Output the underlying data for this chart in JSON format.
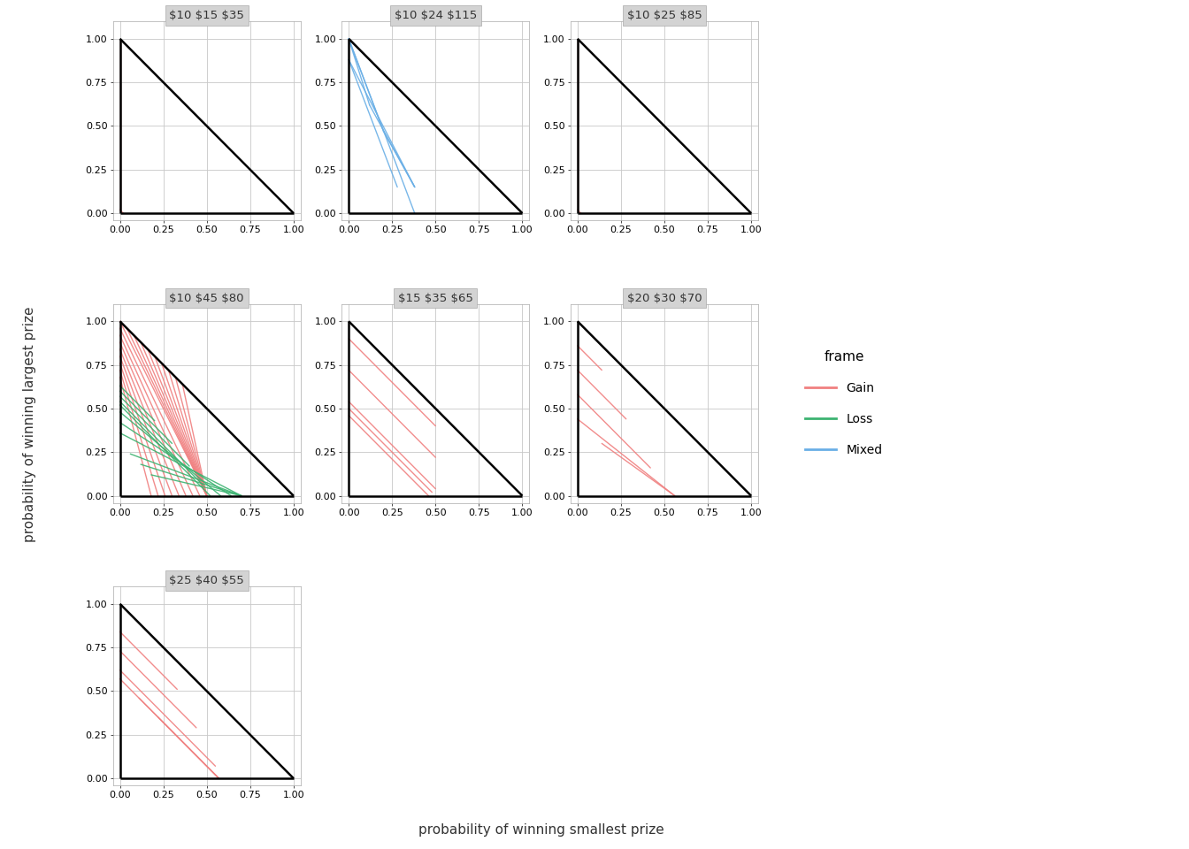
{
  "panels": [
    {
      "title": "$10 $15 $35",
      "row": 0,
      "col": 0,
      "lines": [
        {
          "x": [
            0.0,
            0.0
          ],
          "y": [
            1.0,
            0.02
          ],
          "color": "gain"
        },
        {
          "x": [
            0.0,
            0.02
          ],
          "y": [
            0.02,
            0.0
          ],
          "color": "gain"
        }
      ]
    },
    {
      "title": "$10 $24 $115",
      "row": 0,
      "col": 1,
      "lines": [
        {
          "x": [
            0.0,
            0.12
          ],
          "y": [
            1.0,
            0.62
          ],
          "color": "mixed"
        },
        {
          "x": [
            0.0,
            0.2
          ],
          "y": [
            1.0,
            0.47
          ],
          "color": "mixed"
        },
        {
          "x": [
            0.0,
            0.28
          ],
          "y": [
            0.88,
            0.15
          ],
          "color": "mixed"
        },
        {
          "x": [
            0.0,
            0.38
          ],
          "y": [
            0.88,
            0.15
          ],
          "color": "mixed"
        },
        {
          "x": [
            0.12,
            0.38
          ],
          "y": [
            0.62,
            0.15
          ],
          "color": "mixed"
        },
        {
          "x": [
            0.2,
            0.38
          ],
          "y": [
            0.47,
            0.15
          ],
          "color": "mixed"
        },
        {
          "x": [
            0.0,
            0.38
          ],
          "y": [
            1.0,
            0.0
          ],
          "color": "mixed"
        }
      ]
    },
    {
      "title": "$10 $25 $85",
      "row": 0,
      "col": 2,
      "lines": [
        {
          "x": [
            0.0,
            0.0
          ],
          "y": [
            1.0,
            0.02
          ],
          "color": "gain"
        },
        {
          "x": [
            0.0,
            0.02
          ],
          "y": [
            0.02,
            0.0
          ],
          "color": "gain"
        }
      ]
    },
    {
      "title": "$10 $45 $80",
      "row": 1,
      "col": 0,
      "lines": [
        {
          "x": [
            0.0,
            0.5
          ],
          "y": [
            1.0,
            0.0
          ],
          "color": "gain"
        },
        {
          "x": [
            0.0,
            0.46
          ],
          "y": [
            0.96,
            0.0
          ],
          "color": "gain"
        },
        {
          "x": [
            0.0,
            0.42
          ],
          "y": [
            0.92,
            0.0
          ],
          "color": "gain"
        },
        {
          "x": [
            0.0,
            0.38
          ],
          "y": [
            0.88,
            0.0
          ],
          "color": "gain"
        },
        {
          "x": [
            0.0,
            0.34
          ],
          "y": [
            0.84,
            0.0
          ],
          "color": "gain"
        },
        {
          "x": [
            0.0,
            0.3
          ],
          "y": [
            0.8,
            0.0
          ],
          "color": "gain"
        },
        {
          "x": [
            0.0,
            0.26
          ],
          "y": [
            0.76,
            0.0
          ],
          "color": "gain"
        },
        {
          "x": [
            0.0,
            0.22
          ],
          "y": [
            0.72,
            0.0
          ],
          "color": "gain"
        },
        {
          "x": [
            0.0,
            0.18
          ],
          "y": [
            0.68,
            0.0
          ],
          "color": "gain"
        },
        {
          "x": [
            0.04,
            0.5
          ],
          "y": [
            0.96,
            0.0
          ],
          "color": "gain"
        },
        {
          "x": [
            0.08,
            0.5
          ],
          "y": [
            0.92,
            0.0
          ],
          "color": "gain"
        },
        {
          "x": [
            0.12,
            0.5
          ],
          "y": [
            0.88,
            0.0
          ],
          "color": "gain"
        },
        {
          "x": [
            0.16,
            0.5
          ],
          "y": [
            0.84,
            0.0
          ],
          "color": "gain"
        },
        {
          "x": [
            0.2,
            0.5
          ],
          "y": [
            0.8,
            0.0
          ],
          "color": "gain"
        },
        {
          "x": [
            0.24,
            0.5
          ],
          "y": [
            0.76,
            0.0
          ],
          "color": "gain"
        },
        {
          "x": [
            0.28,
            0.5
          ],
          "y": [
            0.72,
            0.0
          ],
          "color": "gain"
        },
        {
          "x": [
            0.32,
            0.5
          ],
          "y": [
            0.68,
            0.0
          ],
          "color": "gain"
        },
        {
          "x": [
            0.36,
            0.5
          ],
          "y": [
            0.64,
            0.0
          ],
          "color": "gain"
        },
        {
          "x": [
            0.0,
            0.2
          ],
          "y": [
            0.63,
            0.43
          ],
          "color": "loss"
        },
        {
          "x": [
            0.0,
            0.3
          ],
          "y": [
            0.6,
            0.3
          ],
          "color": "loss"
        },
        {
          "x": [
            0.0,
            0.4
          ],
          "y": [
            0.57,
            0.17
          ],
          "color": "loss"
        },
        {
          "x": [
            0.0,
            0.48
          ],
          "y": [
            0.54,
            0.06
          ],
          "color": "loss"
        },
        {
          "x": [
            0.0,
            0.52
          ],
          "y": [
            0.52,
            0.0
          ],
          "color": "loss"
        },
        {
          "x": [
            0.0,
            0.58
          ],
          "y": [
            0.48,
            0.0
          ],
          "color": "loss"
        },
        {
          "x": [
            0.0,
            0.64
          ],
          "y": [
            0.42,
            0.0
          ],
          "color": "loss"
        },
        {
          "x": [
            0.0,
            0.7
          ],
          "y": [
            0.36,
            0.0
          ],
          "color": "loss"
        },
        {
          "x": [
            0.06,
            0.7
          ],
          "y": [
            0.24,
            0.0
          ],
          "color": "loss"
        },
        {
          "x": [
            0.12,
            0.7
          ],
          "y": [
            0.18,
            0.0
          ],
          "color": "loss"
        },
        {
          "x": [
            0.18,
            0.7
          ],
          "y": [
            0.12,
            0.0
          ],
          "color": "loss"
        }
      ]
    },
    {
      "title": "$15 $35 $65",
      "row": 1,
      "col": 1,
      "lines": [
        {
          "x": [
            0.0,
            0.5
          ],
          "y": [
            0.9,
            0.4
          ],
          "color": "gain"
        },
        {
          "x": [
            0.0,
            0.5
          ],
          "y": [
            0.72,
            0.22
          ],
          "color": "gain"
        },
        {
          "x": [
            0.0,
            0.5
          ],
          "y": [
            0.54,
            0.04
          ],
          "color": "gain"
        },
        {
          "x": [
            0.0,
            0.48
          ],
          "y": [
            0.5,
            0.02
          ],
          "color": "gain"
        },
        {
          "x": [
            0.0,
            0.46
          ],
          "y": [
            0.46,
            0.0
          ],
          "color": "gain"
        }
      ]
    },
    {
      "title": "$20 $30 $70",
      "row": 1,
      "col": 2,
      "lines": [
        {
          "x": [
            0.0,
            0.14
          ],
          "y": [
            0.86,
            0.72
          ],
          "color": "gain"
        },
        {
          "x": [
            0.0,
            0.28
          ],
          "y": [
            0.72,
            0.44
          ],
          "color": "gain"
        },
        {
          "x": [
            0.0,
            0.42
          ],
          "y": [
            0.58,
            0.16
          ],
          "color": "gain"
        },
        {
          "x": [
            0.0,
            0.56
          ],
          "y": [
            0.44,
            0.0
          ],
          "color": "gain"
        },
        {
          "x": [
            0.14,
            0.56
          ],
          "y": [
            0.3,
            0.0
          ],
          "color": "gain"
        }
      ]
    },
    {
      "title": "$25 $40 $55",
      "row": 2,
      "col": 0,
      "lines": [
        {
          "x": [
            0.0,
            0.33
          ],
          "y": [
            0.84,
            0.51
          ],
          "color": "gain"
        },
        {
          "x": [
            0.0,
            0.44
          ],
          "y": [
            0.73,
            0.29
          ],
          "color": "gain"
        },
        {
          "x": [
            0.0,
            0.55
          ],
          "y": [
            0.62,
            0.07
          ],
          "color": "gain"
        },
        {
          "x": [
            0.0,
            0.57
          ],
          "y": [
            0.57,
            0.0
          ],
          "color": "gain"
        },
        {
          "x": [
            0.11,
            0.57
          ],
          "y": [
            0.46,
            0.0
          ],
          "color": "gain"
        },
        {
          "x": [
            0.22,
            0.57
          ],
          "y": [
            0.35,
            0.0
          ],
          "color": "gain"
        }
      ]
    }
  ],
  "colors": {
    "gain": "#F08080",
    "loss": "#3CB371",
    "mixed": "#6AAFE6",
    "triangle": "#000000",
    "background": "#FFFFFF",
    "panel_bg": "#FFFFFF",
    "strip_bg": "#D3D3D3",
    "grid": "#C8C8C8"
  },
  "xlabel": "probability of winning smallest prize",
  "ylabel": "probability of winning largest prize",
  "legend_title": "frame",
  "legend_entries": [
    "Gain",
    "Loss",
    "Mixed"
  ],
  "legend_colors": [
    "#F08080",
    "#3CB371",
    "#6AAFE6"
  ],
  "figsize": [
    13.44,
    9.6
  ],
  "dpi": 100
}
